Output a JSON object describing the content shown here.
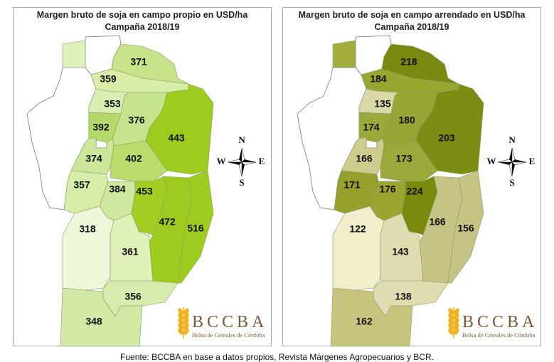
{
  "maps": [
    {
      "title": "Margen bruto de soja en campo propio en USD/ha",
      "subtitle": "Campaña 2018/19",
      "values": {
        "r371": "371",
        "r359": "359",
        "r353": "353",
        "r376": "376",
        "r443": "443",
        "r392": "392",
        "r374": "374",
        "r402": "402",
        "r357": "357",
        "r384": "384",
        "r453": "453",
        "r472": "472",
        "r516": "516",
        "r318": "318",
        "r361": "361",
        "r356": "356",
        "r348": "348"
      },
      "colors": {
        "tl": "#e0f0bb",
        "r371": "#c8e38a",
        "r359": "#d9eda8",
        "r353": "#dbeeb2",
        "r376": "#c6e38e",
        "r443": "#9dcc1e",
        "r392": "#b5d96a",
        "r374": "#cde79a",
        "r402": "#b9dc6c",
        "r357": "#d8ecaa",
        "r384": "#cfe7a0",
        "r453": "#a3cf22",
        "r472": "#9dcc1e",
        "r516": "#9dcc1e",
        "r318": "#eef7d8",
        "r361": "#dff0b8",
        "r356": "#d7ebac",
        "r348": "#d2e8a4"
      }
    },
    {
      "title": "Margen bruto de soja en campo arrendado en USD/ha",
      "subtitle": "Campaña 2018/19",
      "values": {
        "r371": "218",
        "r359": "184",
        "r353": "135",
        "r376": "180",
        "r443": "203",
        "r392": "174",
        "r374": "166",
        "r402": "173",
        "r357": "171",
        "r384": "176",
        "r453": "224",
        "r472": "166",
        "r516": "156",
        "r318": "122",
        "r361": "143",
        "r356": "138",
        "r348": "162"
      },
      "colors": {
        "tl": "#a3ad3e",
        "r371": "#7a8a10",
        "r359": "#9aa632",
        "r353": "#d9d9a8",
        "r376": "#99a636",
        "r443": "#7d8c12",
        "r392": "#9ca83a",
        "r374": "#cdcc8c",
        "r402": "#9ca83a",
        "r357": "#95a12c",
        "r384": "#9aa532",
        "r453": "#7a8a0c",
        "r472": "#c5c484",
        "r516": "#c5c484",
        "r318": "#f2eecb",
        "r361": "#dedcb0",
        "r356": "#dedcb0",
        "r348": "#c8c47e"
      }
    }
  ],
  "compass": {
    "n": "N",
    "s": "S",
    "e": "E",
    "w": "W"
  },
  "logo": {
    "name": "BCCBA",
    "subtitle": "Bolsa de Cereales de Córdoba",
    "color": "#7a5a3a",
    "wheat_color": "#f0b020"
  },
  "footer": "Fuente: BCCBA en base a datos propios, Revista Márgenes Agropecuarios y BCR."
}
